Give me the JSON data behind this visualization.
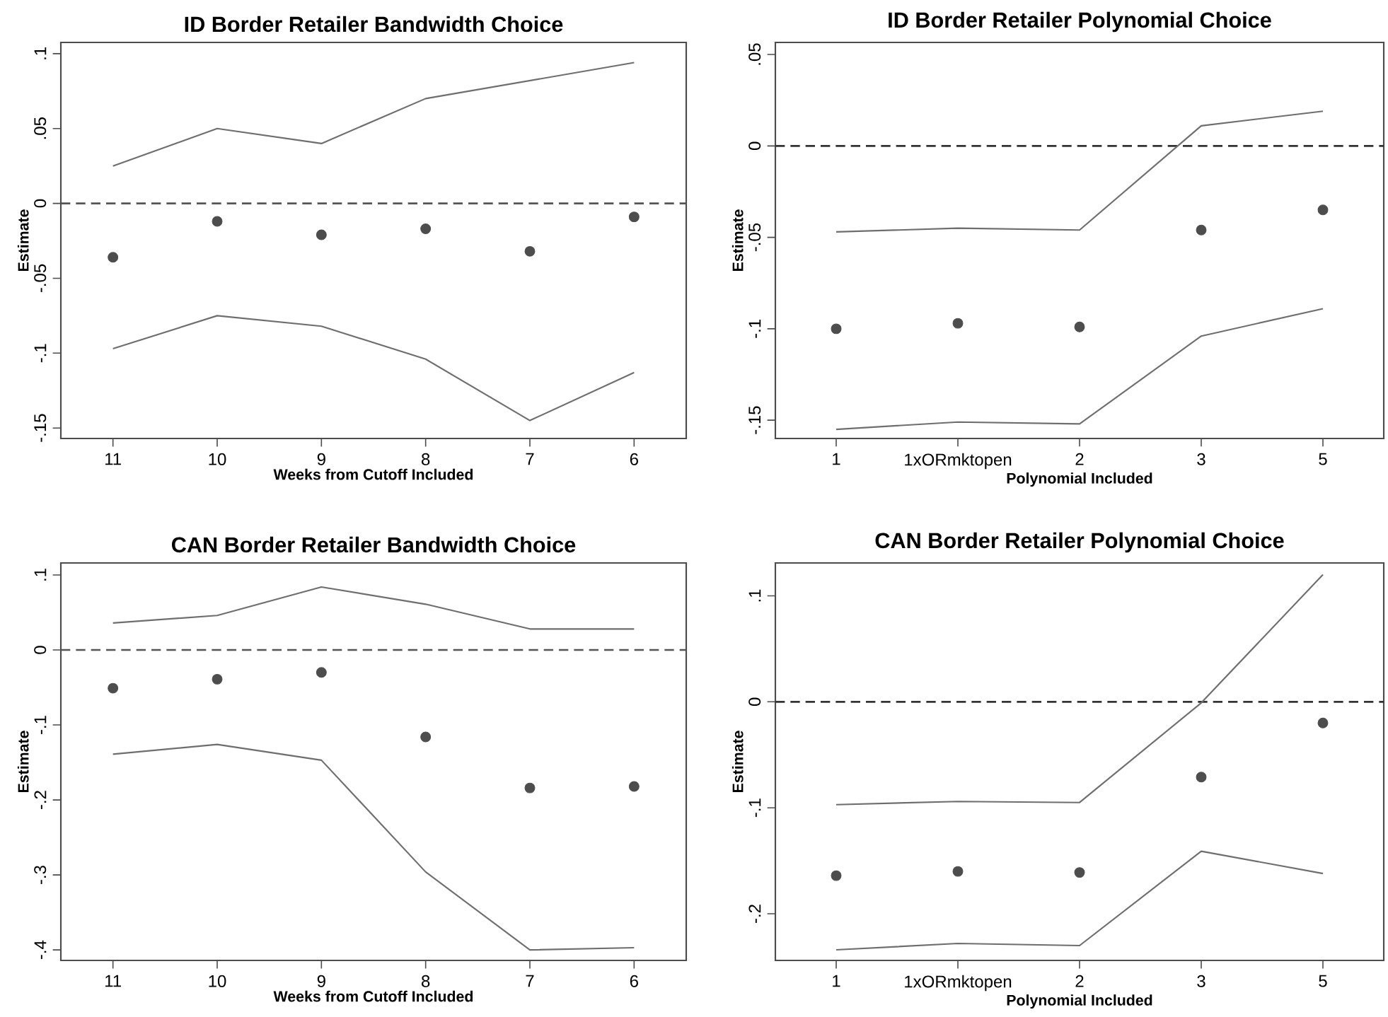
{
  "chart_data": [
    {
      "type": "line",
      "marker": "circle",
      "title": "ID Border Retailer Bandwidth Choice",
      "xlabel": "Weeks from Cutoff Included",
      "ylabel": "Estimate",
      "categories": [
        "11",
        "10",
        "9",
        "8",
        "7",
        "6"
      ],
      "ylim": [
        -0.157,
        0.1075
      ],
      "yticks": [
        {
          "value": -0.15,
          "label": "-.15"
        },
        {
          "value": -0.1,
          "label": "-.1"
        },
        {
          "value": -0.05,
          "label": "-.05"
        },
        0,
        {
          "value": 0.05,
          "label": ".05"
        },
        {
          "value": 0.1,
          "label": ".1"
        }
      ],
      "ref_lines": [
        {
          "axis": "y",
          "value": 0,
          "color": "#555555",
          "line_style": "dashed"
        }
      ],
      "series": [
        {
          "color": "#6e6e6e",
          "marker": "none",
          "values": [
            0.025,
            0.05,
            0.04,
            0.07,
            0.082,
            0.094
          ]
        },
        {
          "color": "#6e6e6e",
          "marker": "none",
          "values": [
            -0.097,
            -0.075,
            -0.082,
            -0.104,
            -0.145,
            -0.113
          ]
        },
        {
          "type": "scatter",
          "color": "#4d4d4d",
          "values": [
            -0.036,
            -0.012,
            -0.021,
            -0.017,
            -0.032,
            -0.009
          ]
        }
      ]
    },
    {
      "type": "line",
      "marker": "circle",
      "title": "ID Border Retailer Polynomial Choice",
      "xlabel": "Polynomial Included",
      "ylabel": "Estimate",
      "categories": [
        "1",
        "1xORmktopen",
        "2",
        "3",
        "5"
      ],
      "ylim": [
        -0.16,
        0.0566
      ],
      "yticks": [
        {
          "value": -0.15,
          "label": "-.15"
        },
        {
          "value": -0.1,
          "label": "-.1"
        },
        {
          "value": -0.05,
          "label": "-.05"
        },
        0,
        {
          "value": 0.05,
          "label": ".05"
        }
      ],
      "ref_lines": [
        {
          "axis": "y",
          "value": 0,
          "color": "#333333",
          "line_style": "dashed"
        }
      ],
      "series": [
        {
          "color": "#6e6e6e",
          "marker": "none",
          "values": [
            -0.047,
            -0.045,
            -0.046,
            0.011,
            0.019
          ]
        },
        {
          "color": "#6e6e6e",
          "marker": "none",
          "values": [
            -0.155,
            -0.151,
            -0.152,
            -0.104,
            -0.089
          ]
        },
        {
          "type": "scatter",
          "color": "#4d4d4d",
          "values": [
            -0.1,
            -0.097,
            -0.099,
            -0.046,
            -0.035
          ]
        }
      ]
    },
    {
      "type": "line",
      "marker": "circle",
      "title": "CAN Border Retailer Bandwidth Choice",
      "xlabel": "Weeks from Cutoff Included",
      "ylabel": "Estimate",
      "categories": [
        "11",
        "10",
        "9",
        "8",
        "7",
        "6"
      ],
      "ylim": [
        -0.414,
        0.116
      ],
      "yticks": [
        {
          "value": -0.4,
          "label": "-.4"
        },
        {
          "value": -0.3,
          "label": "-.3"
        },
        {
          "value": -0.2,
          "label": "-.2"
        },
        {
          "value": -0.1,
          "label": "-.1"
        },
        0,
        {
          "value": 0.1,
          "label": ".1"
        }
      ],
      "ref_lines": [
        {
          "axis": "y",
          "value": 0,
          "color": "#555555",
          "line_style": "dashed"
        }
      ],
      "series": [
        {
          "color": "#6e6e6e",
          "marker": "none",
          "values": [
            0.036,
            0.046,
            0.084,
            0.061,
            0.028,
            0.028
          ]
        },
        {
          "color": "#6e6e6e",
          "marker": "none",
          "values": [
            -0.139,
            -0.126,
            -0.147,
            -0.296,
            -0.4,
            -0.397
          ]
        },
        {
          "type": "scatter",
          "color": "#4d4d4d",
          "values": [
            -0.051,
            -0.039,
            -0.03,
            -0.116,
            -0.184,
            -0.182
          ]
        }
      ]
    },
    {
      "type": "line",
      "marker": "circle",
      "title": "CAN Border Retailer Polynomial Choice",
      "xlabel": "Polynomial Included",
      "ylabel": "Estimate",
      "categories": [
        "1",
        "1xORmktopen",
        "2",
        "3",
        "5"
      ],
      "ylim": [
        -0.244,
        0.131
      ],
      "yticks": [
        {
          "value": -0.2,
          "label": "-.2"
        },
        {
          "value": -0.1,
          "label": "-.1"
        },
        0,
        {
          "value": 0.1,
          "label": ".1"
        }
      ],
      "ref_lines": [
        {
          "axis": "y",
          "value": 0,
          "color": "#333333",
          "line_style": "dashed"
        }
      ],
      "series": [
        {
          "color": "#6e6e6e",
          "marker": "none",
          "values": [
            -0.097,
            -0.094,
            -0.095,
            -0.001,
            0.12
          ]
        },
        {
          "color": "#6e6e6e",
          "marker": "none",
          "values": [
            -0.234,
            -0.228,
            -0.23,
            -0.141,
            -0.162
          ]
        },
        {
          "type": "scatter",
          "color": "#4d4d4d",
          "values": [
            -0.164,
            -0.16,
            -0.161,
            -0.071,
            -0.02
          ]
        }
      ]
    }
  ]
}
